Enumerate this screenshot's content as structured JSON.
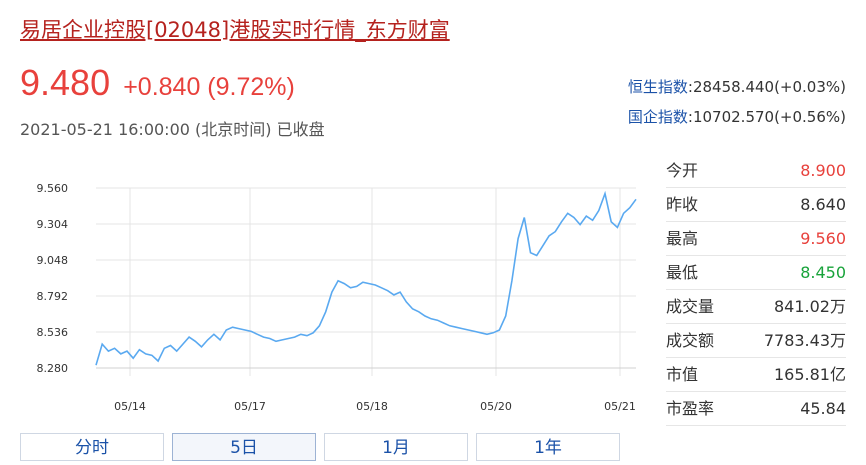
{
  "header": {
    "title": "易居企业控股[02048]港股实时行情_东方财富"
  },
  "quote": {
    "price": "9.480",
    "change": "+0.840 (9.72%)",
    "timestamp": "2021-05-21 16:00:00 (北京时间) 已收盘"
  },
  "indices": [
    {
      "name": "恒生指数",
      "value": ":28458.440(+0.03%)"
    },
    {
      "name": "国企指数",
      "value": ":10702.570(+0.56%)"
    }
  ],
  "stats": [
    {
      "label": "今开",
      "value": "8.900",
      "tone": "up"
    },
    {
      "label": "昨收",
      "value": "8.640",
      "tone": "neutral"
    },
    {
      "label": "最高",
      "value": "9.560",
      "tone": "up"
    },
    {
      "label": "最低",
      "value": "8.450",
      "tone": "down"
    },
    {
      "label": "成交量",
      "value": "841.02万",
      "tone": "neutral"
    },
    {
      "label": "成交额",
      "value": "7783.43万",
      "tone": "neutral"
    },
    {
      "label": "市值",
      "value": "165.81亿",
      "tone": "neutral"
    },
    {
      "label": "市盈率",
      "value": "45.84",
      "tone": "neutral"
    }
  ],
  "tabs": [
    {
      "label": "分时",
      "active": false
    },
    {
      "label": "5日",
      "active": true
    },
    {
      "label": "1月",
      "active": false
    },
    {
      "label": "1年",
      "active": false
    }
  ],
  "colors": {
    "line": "#5aa9f0",
    "up": "#e8413c",
    "down": "#18a33a",
    "link": "#1b52a8"
  },
  "chart_data": {
    "type": "line",
    "x_labels": [
      "05/14",
      "05/17",
      "05/18",
      "05/20",
      "05/21"
    ],
    "y_ticks": [
      "9.560",
      "9.304",
      "9.048",
      "8.792",
      "8.536",
      "8.280"
    ],
    "ylim": [
      8.28,
      9.56
    ],
    "grid": true,
    "series": [
      {
        "values": [
          8.3,
          8.45,
          8.4,
          8.42,
          8.38,
          8.4,
          8.35,
          8.41,
          8.38,
          8.37,
          8.33,
          8.42,
          8.44,
          8.4,
          8.45,
          8.5,
          8.47,
          8.43,
          8.48,
          8.52,
          8.48,
          8.55,
          8.57,
          8.56,
          8.55,
          8.54,
          8.52,
          8.5,
          8.49,
          8.47,
          8.48,
          8.49,
          8.5,
          8.52,
          8.51,
          8.53,
          8.58,
          8.68,
          8.82,
          8.9,
          8.88,
          8.85,
          8.86,
          8.89,
          8.88,
          8.87,
          8.85,
          8.83,
          8.8,
          8.82,
          8.75,
          8.7,
          8.68,
          8.65,
          8.63,
          8.62,
          8.6,
          8.58,
          8.57,
          8.56,
          8.55,
          8.54,
          8.53,
          8.52,
          8.53,
          8.55,
          8.65,
          8.9,
          9.2,
          9.35,
          9.1,
          9.08,
          9.15,
          9.22,
          9.25,
          9.32,
          9.38,
          9.35,
          9.3,
          9.36,
          9.33,
          9.4,
          9.52,
          9.32,
          9.28,
          9.38,
          9.42,
          9.48
        ]
      }
    ]
  }
}
